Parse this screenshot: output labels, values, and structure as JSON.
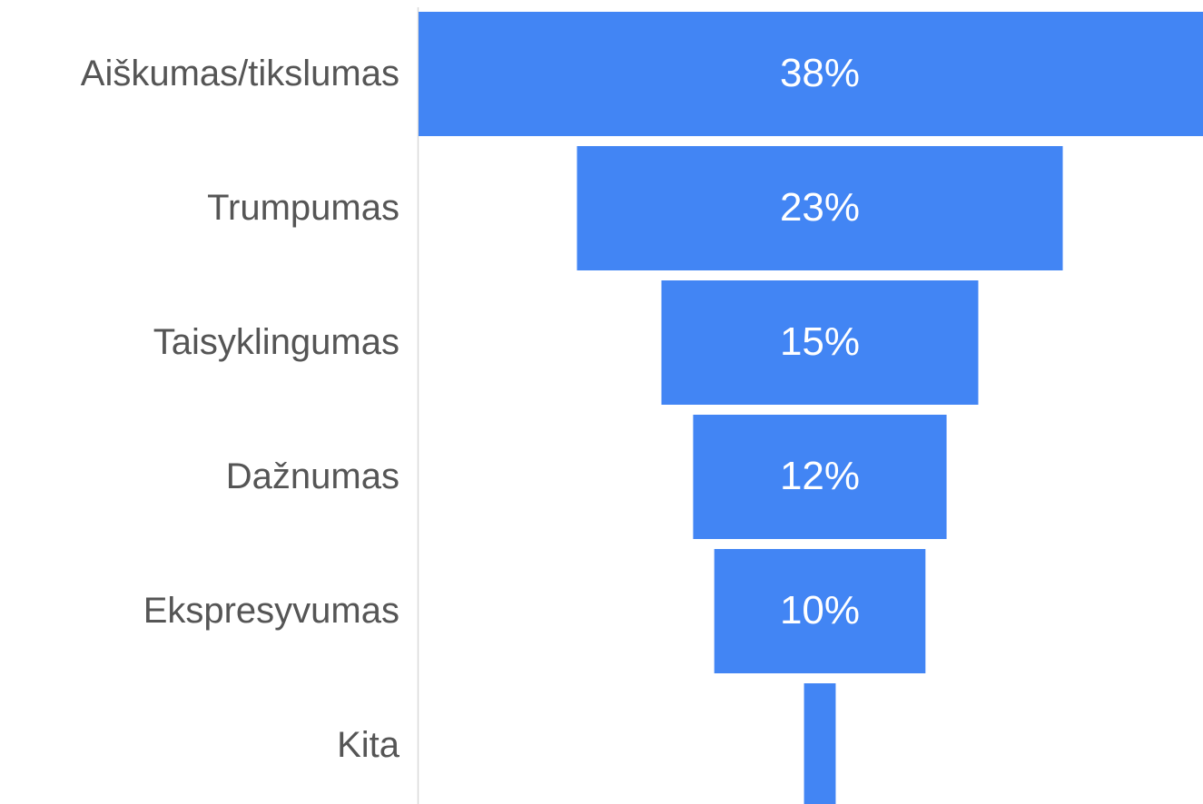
{
  "chart_data": {
    "type": "funnel",
    "categories": [
      "Aiškumas/tikslumas",
      "Trumpumas",
      "Taisyklingumas",
      "Dažnumas",
      "Ekspresyvumas",
      "Kita"
    ],
    "values": [
      38,
      23,
      15,
      12,
      10,
      1.5
    ],
    "value_labels": [
      "38%",
      "23%",
      "15%",
      "12%",
      "10%",
      null
    ],
    "color": "#4285f4"
  }
}
